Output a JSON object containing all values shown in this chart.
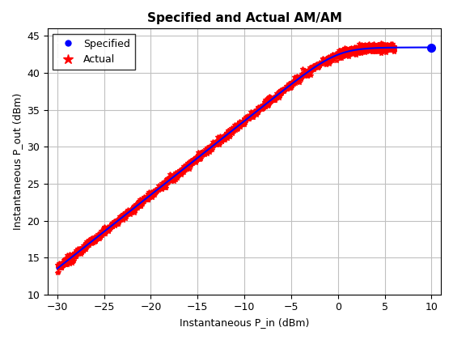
{
  "title": "Specified and Actual AM/AM",
  "xlabel": "Instantaneous P_in (dBm)",
  "ylabel": "Instantaneous P_out (dBm)",
  "xlim": [
    -31,
    11
  ],
  "ylim": [
    10,
    46
  ],
  "xticks": [
    -30,
    -25,
    -20,
    -15,
    -10,
    -5,
    0,
    5,
    10
  ],
  "yticks": [
    10,
    15,
    20,
    25,
    30,
    35,
    40,
    45
  ],
  "specified_color": "#0000FF",
  "actual_color": "#FF0000",
  "pout_sat": 43.5,
  "gain_small_signal": 43.0,
  "noise_std": 0.25,
  "background_color": "#FFFFFF",
  "grid_color": "#C0C0C0",
  "title_fontsize": 11,
  "label_fontsize": 9,
  "tick_fontsize": 9
}
